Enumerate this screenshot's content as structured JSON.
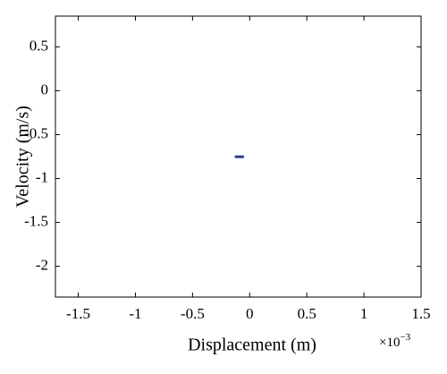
{
  "chart_data": {
    "type": "line",
    "xlabel": "Displacement (m)",
    "ylabel": "Velocity (m/s)",
    "x_exponent": {
      "base": "×10",
      "power": "−3"
    },
    "x": [
      -0.12,
      -0.09,
      -0.06
    ],
    "series": [
      {
        "color": "#2b3d91",
        "values": [
          -0.752,
          -0.751,
          -0.752
        ]
      }
    ],
    "xlim": [
      -1.7,
      1.5
    ],
    "xticks": [
      -1.5,
      -1,
      -0.5,
      0,
      0.5,
      1,
      1.5
    ],
    "ylim": [
      -2.35,
      0.85
    ],
    "yticks": [
      0.5,
      0,
      -0.5,
      -1,
      -1.5,
      -2
    ],
    "grid": false
  }
}
